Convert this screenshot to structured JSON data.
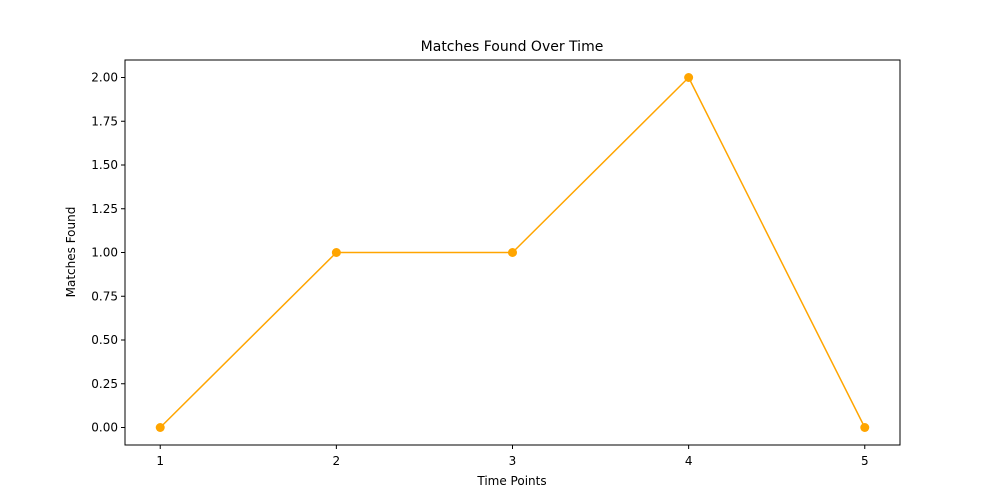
{
  "chart_data": {
    "type": "line",
    "title": "Matches Found Over Time",
    "xlabel": "Time Points",
    "ylabel": "Matches Found",
    "x": [
      1,
      2,
      3,
      4,
      5
    ],
    "series": [
      {
        "name": "Matches Found",
        "values": [
          0,
          1,
          1,
          2,
          0
        ],
        "color": "#ffa500",
        "marker": "circle"
      }
    ],
    "xticks": [
      1,
      2,
      3,
      4,
      5
    ],
    "xtick_labels": [
      "1",
      "2",
      "3",
      "4",
      "5"
    ],
    "yticks": [
      0,
      0.25,
      0.5,
      0.75,
      1.0,
      1.25,
      1.5,
      1.75,
      2.0
    ],
    "ytick_labels": [
      "0.00",
      "0.25",
      "0.50",
      "0.75",
      "1.00",
      "1.25",
      "1.50",
      "1.75",
      "2.00"
    ],
    "xlim": [
      0.8,
      5.2
    ],
    "ylim": [
      -0.1,
      2.1
    ],
    "grid": false,
    "legend": false
  }
}
